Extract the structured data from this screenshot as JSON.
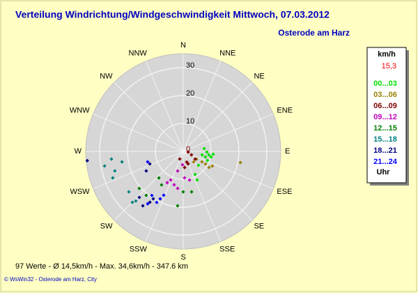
{
  "chart_data": {
    "type": "polar",
    "title": "Verteilung Windrichtung/Windgeschwindigkeit  Mittwoch, 07.03.2012",
    "subtitle": "Osterode am Harz",
    "directions": [
      "N",
      "NNE",
      "NE",
      "ENE",
      "E",
      "ESE",
      "SE",
      "SSE",
      "S",
      "SSW",
      "SW",
      "WSW",
      "W",
      "WNW",
      "NW",
      "NNW"
    ],
    "rlim": [
      0,
      35
    ],
    "rticks": [
      0,
      10,
      20,
      30
    ],
    "legend_title": "km/h",
    "legend_note": "15,3",
    "legend_footer": "Uhr",
    "summary": "97 Werte   -   Ø 14,5km/h   -   Max. 34,6km/h   -   347.6 km",
    "copyright": "© WsWin32   -   Osterode am Harz, City",
    "series": [
      {
        "name": "00...03",
        "color": "#00e000",
        "theta": [
          82.4,
          91.7,
          97.7,
          101.3,
          95.3,
          104.0,
          100.5,
          110.4,
          132.3,
          152.7,
          153.9
        ],
        "values": [
          7.6,
          8.5,
          9.3,
          10.2,
          10.8,
          8.2,
          6.9,
          9.3,
          7.4,
          9.3,
          11.4
        ]
      },
      {
        "name": "03...06",
        "color": "#998000",
        "theta": [
          101.0,
          116.6,
          121.9,
          119.4,
          119.1,
          120.1,
          135.0
        ],
        "values": [
          20.9,
          11.7,
          10.9,
          9.2,
          7.7,
          5.5,
          5.3
        ]
      },
      {
        "name": "06...09",
        "color": "#800000",
        "theta": [
          98.1,
          112.6,
          122.9,
          161.6,
          204.4,
          175.0,
          158.7
        ],
        "values": [
          1.8,
          3.2,
          5.1,
          4.0,
          3.0,
          5.8,
          4.8
        ]
      },
      {
        "name": "09...12",
        "color": "#c000c0",
        "theta": [
          183.0,
          196.0,
          177.0,
          167.6,
          195.2,
          203.7,
          207.1,
          188.6
        ],
        "values": [
          4.8,
          7.3,
          9.5,
          10.5,
          12.4,
          11.2,
          12.6,
          13.4
        ]
      },
      {
        "name": "12...15",
        "color": "#008000",
        "theta": [
          180.0,
          168.3,
          185.9,
          212.9,
          222.6,
          220.1,
          229.9
        ],
        "values": [
          14.5,
          14.8,
          19.6,
          14.3,
          12.9,
          20.6,
          20.6
        ]
      },
      {
        "name": "15...18",
        "color": "#008080",
        "theta": [
          263.9,
          259.5,
          254.1,
          260.3,
          249.4,
          233.4,
          225.0,
          223.8
        ],
        "values": [
          25.9,
          28.7,
          25.5,
          22.3,
          27.0,
          24.3,
          25.8,
          24.6
        ]
      },
      {
        "name": "18...21",
        "color": "#000080",
        "theta": [
          264.5,
          249.4,
          242.2,
          223.7,
          216.6,
          213.3,
          212.3
        ],
        "values": [
          34.6,
          12.8,
          15.0,
          22.8,
          24.3,
          21.8,
          20.1
        ]
      },
      {
        "name": "21...24",
        "color": "#0000ff",
        "theta": [
          253.6,
          207.5,
          205.9,
          215.5,
          214.2,
          204.0
        ],
        "values": [
          13.3,
          20.6,
          18.9,
          19.4,
          22.7,
          17.2
        ]
      }
    ]
  }
}
